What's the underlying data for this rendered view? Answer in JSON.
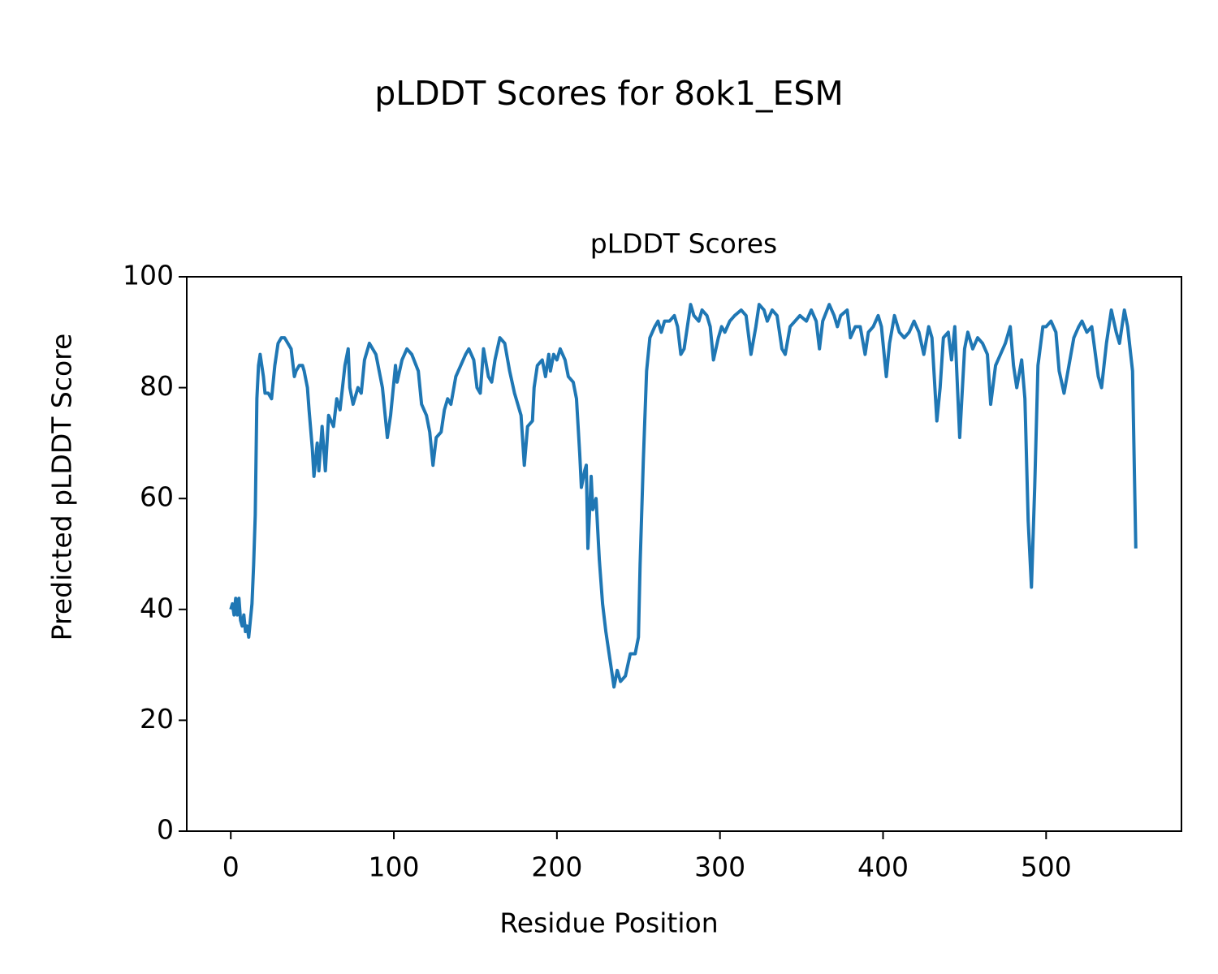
{
  "chart_data": {
    "type": "line",
    "title": "pLDDT Scores for 8ok1_ESM",
    "subtitle": "pLDDT Scores",
    "x_label": "Residue Position",
    "y_label": "Predicted pLDDT Score",
    "xlim": [
      -27,
      583
    ],
    "ylim": [
      0,
      100
    ],
    "xticks": [
      0,
      100,
      200,
      300,
      400,
      500
    ],
    "yticks": [
      0,
      20,
      40,
      60,
      80,
      100
    ],
    "grid": false,
    "series": [
      {
        "name": "pLDDT",
        "color": "#1f77b4",
        "x": [
          0,
          1,
          2,
          3,
          4,
          5,
          6,
          7,
          8,
          9,
          10,
          11,
          12,
          13,
          14,
          15,
          16,
          17,
          18,
          20,
          21,
          23,
          25,
          27,
          29,
          31,
          33,
          35,
          37,
          39,
          40,
          42,
          44,
          45,
          47,
          48,
          50,
          51,
          53,
          54,
          56,
          58,
          60,
          63,
          65,
          67,
          70,
          72,
          73,
          75,
          78,
          80,
          82,
          85,
          89,
          93,
          96,
          98,
          101,
          102,
          105,
          108,
          111,
          115,
          117,
          120,
          122,
          124,
          126,
          129,
          131,
          133,
          135,
          138,
          141,
          144,
          146,
          149,
          151,
          153,
          155,
          158,
          160,
          162,
          165,
          168,
          171,
          174,
          176,
          178,
          180,
          182,
          185,
          186,
          188,
          191,
          193,
          195,
          196,
          198,
          200,
          202,
          205,
          207,
          210,
          212,
          214,
          215,
          217,
          218,
          219,
          221,
          222,
          224,
          226,
          228,
          230,
          232,
          233,
          235,
          237,
          239,
          242,
          245,
          248,
          250,
          251,
          253,
          255,
          257,
          260,
          262,
          264,
          266,
          269,
          272,
          274,
          276,
          278,
          280,
          282,
          284,
          287,
          289,
          292,
          294,
          296,
          299,
          301,
          303,
          306,
          309,
          313,
          316,
          319,
          322,
          324,
          327,
          329,
          332,
          335,
          338,
          340,
          343,
          346,
          349,
          353,
          356,
          359,
          361,
          363,
          367,
          370,
          372,
          374,
          378,
          380,
          383,
          386,
          389,
          391,
          394,
          397,
          399,
          402,
          404,
          407,
          410,
          413,
          416,
          419,
          422,
          425,
          428,
          430,
          433,
          435,
          437,
          440,
          442,
          444,
          447,
          450,
          452,
          455,
          458,
          461,
          464,
          466,
          469,
          472,
          475,
          478,
          480,
          482,
          485,
          487,
          489,
          491,
          493,
          495,
          498,
          500,
          503,
          506,
          508,
          511,
          514,
          517,
          520,
          522,
          525,
          528,
          532,
          534,
          537,
          540,
          543,
          545,
          548,
          550,
          553,
          555
        ],
        "values": [
          40,
          41,
          39,
          42,
          39,
          42,
          38,
          37,
          39,
          36,
          37,
          35,
          38,
          41,
          48,
          57,
          78,
          84,
          86,
          82,
          79,
          79,
          78,
          84,
          88,
          89,
          89,
          88,
          87,
          82,
          83,
          84,
          84,
          83,
          80,
          76,
          69,
          64,
          70,
          65,
          73,
          65,
          75,
          73,
          78,
          76,
          84,
          87,
          80,
          77,
          80,
          79,
          85,
          88,
          86,
          80,
          71,
          75,
          84,
          81,
          85,
          87,
          86,
          83,
          77,
          75,
          72,
          66,
          71,
          72,
          76,
          78,
          77,
          82,
          84,
          86,
          87,
          85,
          80,
          79,
          87,
          82,
          81,
          85,
          89,
          88,
          83,
          79,
          77,
          75,
          66,
          73,
          74,
          80,
          84,
          85,
          82,
          86,
          83,
          86,
          85,
          87,
          85,
          82,
          81,
          78,
          68,
          62,
          65,
          66,
          51,
          64,
          58,
          60,
          49,
          41,
          36,
          32,
          30,
          26,
          29,
          27,
          28,
          32,
          32,
          35,
          48,
          67,
          83,
          89,
          91,
          92,
          90,
          92,
          92,
          93,
          91,
          86,
          87,
          91,
          95,
          93,
          92,
          94,
          93,
          91,
          85,
          89,
          91,
          90,
          92,
          93,
          94,
          93,
          86,
          91,
          95,
          94,
          92,
          94,
          93,
          87,
          86,
          91,
          92,
          93,
          92,
          94,
          92,
          87,
          92,
          95,
          93,
          91,
          93,
          94,
          89,
          91,
          91,
          86,
          90,
          91,
          93,
          91,
          82,
          88,
          93,
          90,
          89,
          90,
          92,
          90,
          86,
          91,
          89,
          74,
          80,
          89,
          90,
          85,
          91,
          71,
          87,
          90,
          87,
          89,
          88,
          86,
          77,
          84,
          86,
          88,
          91,
          84,
          80,
          85,
          78,
          56,
          44,
          62,
          84,
          91,
          91,
          92,
          90,
          83,
          79,
          84,
          89,
          91,
          92,
          90,
          91,
          82,
          80,
          88,
          94,
          90,
          88,
          94,
          91,
          83,
          51
        ]
      }
    ]
  }
}
